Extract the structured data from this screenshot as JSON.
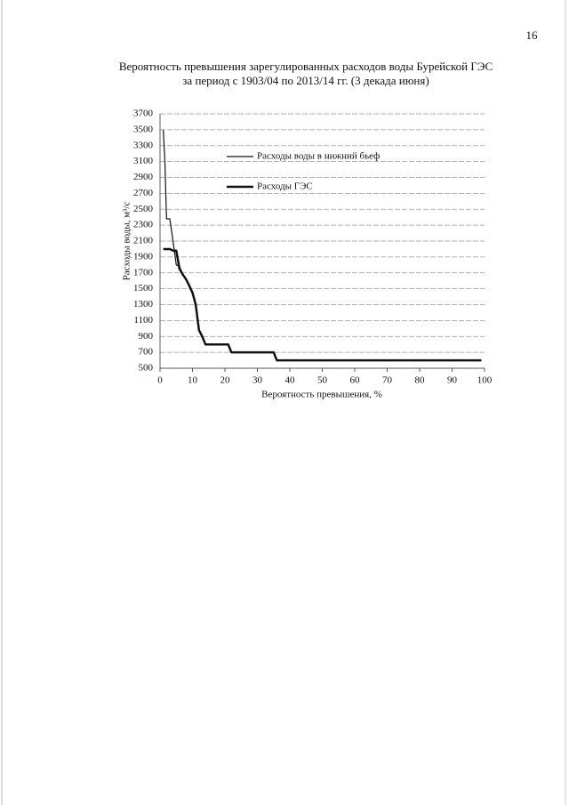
{
  "page_number": "16",
  "chart_data": {
    "type": "line",
    "title": "Вероятность превышения зарегулированных расходов воды Бурейской ГЭС",
    "subtitle": "за период с 1903/04 по 2013/14 гг. (3 декада июня)",
    "x_label": "Вероятность превышения, %",
    "y_label": "Расходы воды, м³/с",
    "xlim": [
      0,
      100
    ],
    "xticks": [
      0,
      10,
      20,
      30,
      40,
      50,
      60,
      70,
      80,
      90,
      100
    ],
    "ylim": [
      500,
      3700
    ],
    "yticks": [
      500,
      700,
      900,
      1100,
      1300,
      1500,
      1700,
      1900,
      2100,
      2300,
      2500,
      2700,
      2900,
      3100,
      3300,
      3500,
      3700
    ],
    "grid": true,
    "legend": "upper left",
    "series": [
      {
        "name": "Расходы воды в нижний бьеф",
        "color": "#111111",
        "linewidth": 1.2,
        "x": [
          1,
          1.5,
          2,
          3,
          4,
          5,
          6,
          7,
          8,
          9,
          10,
          11,
          12,
          13,
          14,
          21,
          22,
          35,
          36,
          99
        ],
        "values": [
          3500,
          3100,
          2380,
          2380,
          2100,
          1800,
          1780,
          1680,
          1620,
          1540,
          1450,
          1300,
          980,
          900,
          800,
          800,
          700,
          700,
          600,
          600
        ]
      },
      {
        "name": "Расходы ГЭС",
        "color": "#111111",
        "linewidth": 2.5,
        "x": [
          1,
          3,
          4,
          5,
          6,
          7,
          8,
          9,
          10,
          11,
          12,
          13,
          14,
          21,
          22,
          35,
          36,
          99
        ],
        "values": [
          2000,
          2000,
          1980,
          1980,
          1750,
          1680,
          1620,
          1540,
          1450,
          1300,
          980,
          900,
          800,
          800,
          700,
          700,
          600,
          600
        ]
      }
    ]
  }
}
